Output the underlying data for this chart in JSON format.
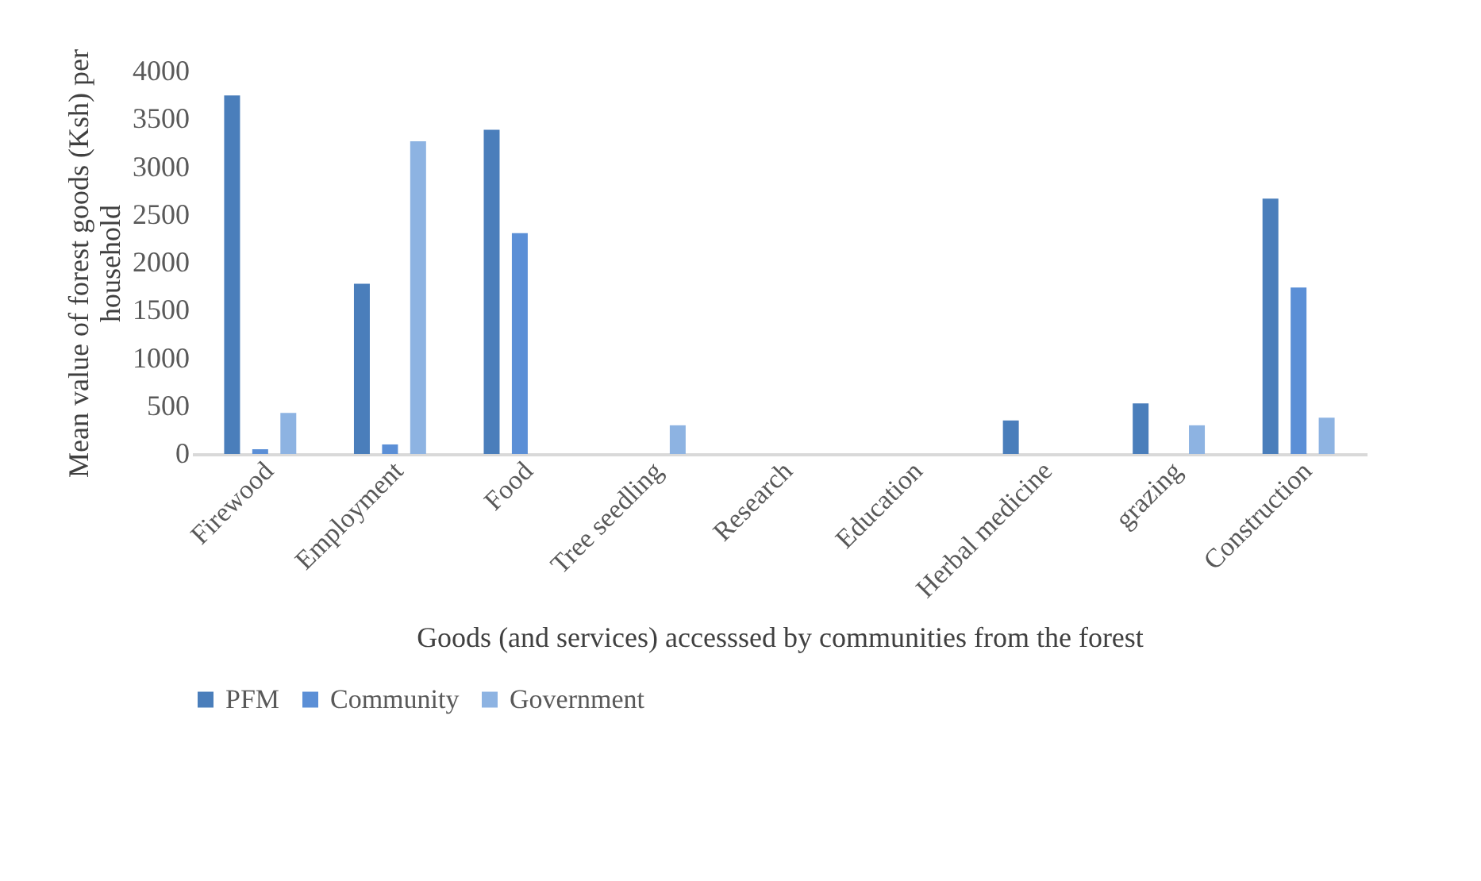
{
  "chart_data": {
    "type": "bar",
    "xlabel": "Goods (and services) accesssed by communities from the forest",
    "ylabel": "Mean value of forest goods (Ksh) per household",
    "categories": [
      "Firewood",
      "Employment",
      "Food",
      "Tree seedling",
      "Research",
      "Education",
      "Herbal medicine",
      "grazing",
      "Construction"
    ],
    "series": [
      {
        "name": "PFM",
        "color": "#4a7ebb",
        "values": [
          3750,
          1780,
          3390,
          0,
          0,
          0,
          350,
          530,
          2670
        ]
      },
      {
        "name": "Community",
        "color": "#5b8fd6",
        "values": [
          50,
          100,
          2310,
          0,
          0,
          0,
          0,
          0,
          1740
        ]
      },
      {
        "name": "Government",
        "color": "#8db3e2",
        "values": [
          430,
          3270,
          0,
          300,
          0,
          0,
          0,
          300,
          380
        ]
      }
    ],
    "ylim": [
      0,
      4000
    ],
    "yticks": [
      0,
      500,
      1000,
      1500,
      2000,
      2500,
      3000,
      3500,
      4000
    ],
    "grid": false,
    "legend": "bottom"
  }
}
